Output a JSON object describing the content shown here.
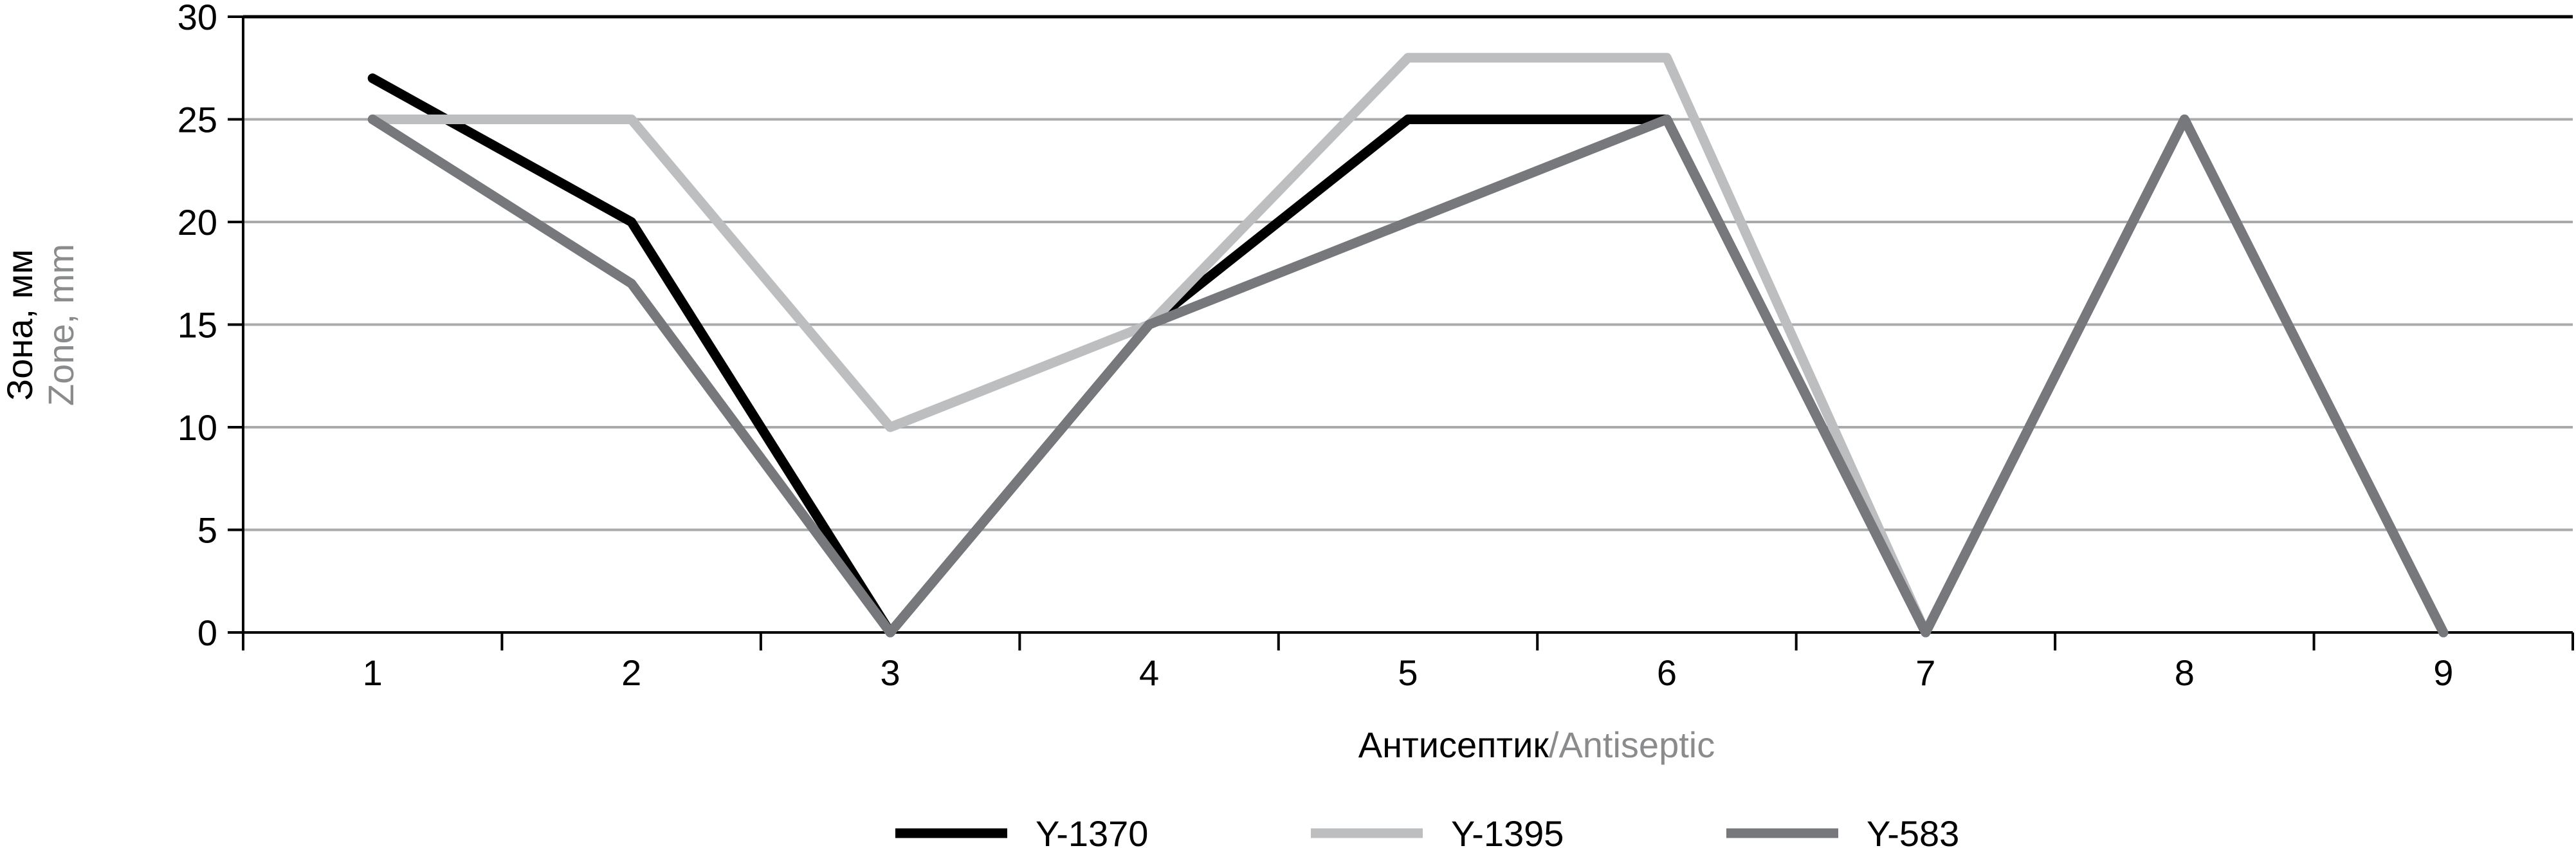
{
  "chart_data": {
    "type": "line",
    "title": "",
    "ylabel_ru": "Зона, мм",
    "ylabel_en": "Zone, mm",
    "xlabel_ru": "Антисептик",
    "xlabel_sep": "/",
    "xlabel_en": "Antiseptic",
    "categories": [
      "1",
      "2",
      "3",
      "4",
      "5",
      "6",
      "7",
      "8",
      "9"
    ],
    "ylim": [
      0,
      30
    ],
    "yticks": [
      0,
      5,
      10,
      15,
      20,
      25,
      30
    ],
    "grid": true,
    "legend_position": "bottom",
    "series": [
      {
        "name": "Y-1370",
        "color": "#000000",
        "values": [
          27,
          20,
          0,
          15,
          25,
          25,
          0,
          25,
          0
        ]
      },
      {
        "name": "Y-1395",
        "color": "#bdbec0",
        "values": [
          25,
          25,
          10,
          15,
          28,
          28,
          0,
          25,
          0
        ]
      },
      {
        "name": "Y-583",
        "color": "#77787b",
        "values": [
          25,
          17,
          0,
          15,
          20,
          25,
          0,
          25,
          0
        ]
      }
    ]
  }
}
